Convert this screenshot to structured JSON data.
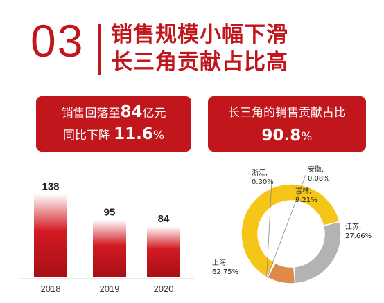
{
  "header": {
    "number": "03",
    "title_line1": "销售规模小幅下滑",
    "title_line2": "长三角贡献占比高"
  },
  "cards": {
    "left": {
      "line1_prefix": "销售回落至",
      "line1_value": "84",
      "line1_suffix": "亿元",
      "line2_prefix": "同比下降",
      "line2_value": "11.6",
      "line2_suffix": "%"
    },
    "right": {
      "line1": "长三角的销售贡献占比",
      "value": "90.8",
      "suffix": "%"
    }
  },
  "colors": {
    "brand_red": "#c0161c",
    "bar_dark": "#b3121a",
    "bar_light": "#ffffff",
    "shanghai": "#f5c518",
    "jiangsu": "#b3b3b3",
    "jilin": "#e08a4a",
    "zhejiang": "#6fa8dc",
    "anhui": "#4a7db8"
  },
  "chart_data": [
    {
      "type": "bar",
      "categories": [
        "2018",
        "2019",
        "2020"
      ],
      "values": [
        138,
        95,
        84
      ],
      "data_labels": [
        "138",
        "95",
        "84"
      ],
      "title": "",
      "xlabel": "",
      "ylabel": "",
      "ylim": [
        0,
        150
      ],
      "grid": false,
      "legend": "none"
    },
    {
      "type": "pie",
      "style": "donut",
      "slices": [
        {
          "name": "上海,",
          "label": "62.75%",
          "value": 62.75,
          "color": "#f5c518"
        },
        {
          "name": "江苏,",
          "label": "27.66%",
          "value": 27.66,
          "color": "#b3b3b3"
        },
        {
          "name": "吉林,",
          "label": "9.21%",
          "value": 9.21,
          "color": "#e08a4a"
        },
        {
          "name": "安徽,",
          "label": "0.08%",
          "value": 0.08,
          "color": "#4a7db8"
        },
        {
          "name": "浙江,",
          "label": "0.30%",
          "value": 0.3,
          "color": "#6fa8dc"
        }
      ],
      "title": "",
      "legend": "none"
    }
  ]
}
